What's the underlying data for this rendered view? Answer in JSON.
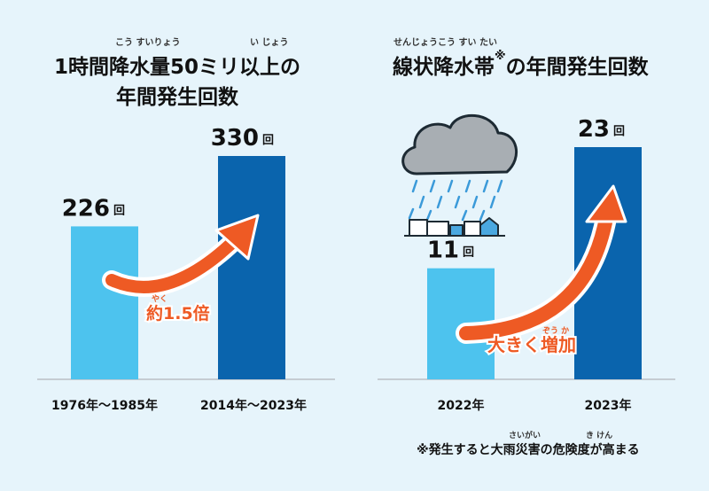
{
  "left": {
    "title_ruby_1": "こう すいりょう",
    "title_ruby_2": "い じょう",
    "title_line1": "1時間降水量50ミリ以上の",
    "title_line2": "年間発生回数",
    "unit": "回",
    "annotation_ruby": "やく",
    "annotation": "約1.5倍"
  },
  "right": {
    "title_ruby": "せんじょうこう すい たい",
    "title_line1": "線状降水帯",
    "title_mark": "※",
    "title_line1b": "の年間発生回数",
    "unit": "回",
    "annotation_ruby": "ぞう か",
    "annotation": "大きく増加"
  },
  "footnote": {
    "text": "※発生すると大雨災害の危険度が高まる",
    "ruby_1": "さいがい",
    "ruby_2": "き けん"
  },
  "colors": {
    "light_bar": "#4dc3ee",
    "dark_bar": "#0a64ad",
    "arrow": "#ee5a24",
    "background": "#e6f4fb"
  },
  "chart_data": [
    {
      "type": "bar",
      "title": "1時間降水量50ミリ以上の年間発生回数",
      "categories": [
        "1976年〜1985年",
        "2014年〜2023年"
      ],
      "values": [
        226,
        330
      ],
      "unit": "回",
      "annotation": "約1.5倍",
      "ylim": [
        0,
        400
      ],
      "grid": false,
      "bar_colors": [
        "#4dc3ee",
        "#0a64ad"
      ]
    },
    {
      "type": "bar",
      "title": "線状降水帯の年間発生回数",
      "categories": [
        "2022年",
        "2023年"
      ],
      "values": [
        11,
        23
      ],
      "unit": "回",
      "annotation": "大きく増加",
      "ylim": [
        0,
        28
      ],
      "grid": false,
      "bar_colors": [
        "#4dc3ee",
        "#0a64ad"
      ]
    }
  ]
}
